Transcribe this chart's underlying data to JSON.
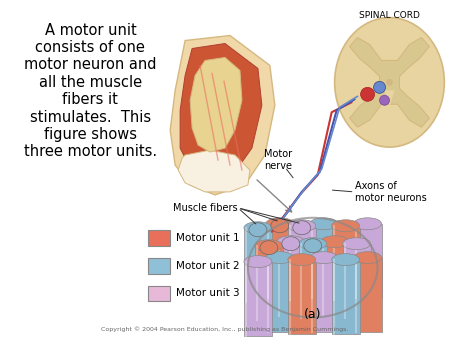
{
  "bg_color": "#ffffff",
  "title_text": "A motor unit\nconsists of one\nmotor neuron and\nall the muscle\nfibers it\nstimulates.  This\nfigure shows\nthree motor units.",
  "title_fontsize": 10.5,
  "legend_items": [
    {
      "label": "Motor unit 1",
      "color": "#E8705A"
    },
    {
      "label": "Motor unit 2",
      "color": "#90C0D8"
    },
    {
      "label": "Motor unit 3",
      "color": "#E8B8D8"
    }
  ],
  "label_a": "(a)",
  "copyright": "Copyright © 2004 Pearson Education, Inc., publishing as Benjamin Cummings.",
  "spinal_cord_label": "SPINAL CORD",
  "motor_nerve_label": "Motor\nnerve",
  "axons_label": "Axons of\nmotor neurons",
  "muscle_fibers_label": "Muscle fibers",
  "color_salmon": "#E08060",
  "color_blue": "#88B8D0",
  "color_lavender": "#C8A8D8",
  "color_pink": "#E8B8C8",
  "color_tan": "#E8D4A8",
  "color_tan_dark": "#D4B880",
  "color_tan_light": "#F0E4C0",
  "color_spinal_outer": "#E8D4A0",
  "color_spinal_inner": "#D8C890",
  "color_axon_red": "#CC3333",
  "color_axon_blue": "#4455AA",
  "color_axon_blue2": "#6688CC",
  "color_neuron_red": "#CC3333",
  "color_neuron_blue": "#6688CC",
  "color_neuron_purple": "#9966BB",
  "color_muscle_red": "#CC5533",
  "color_bone": "#E8D490",
  "color_skin": "#F0D8A8"
}
